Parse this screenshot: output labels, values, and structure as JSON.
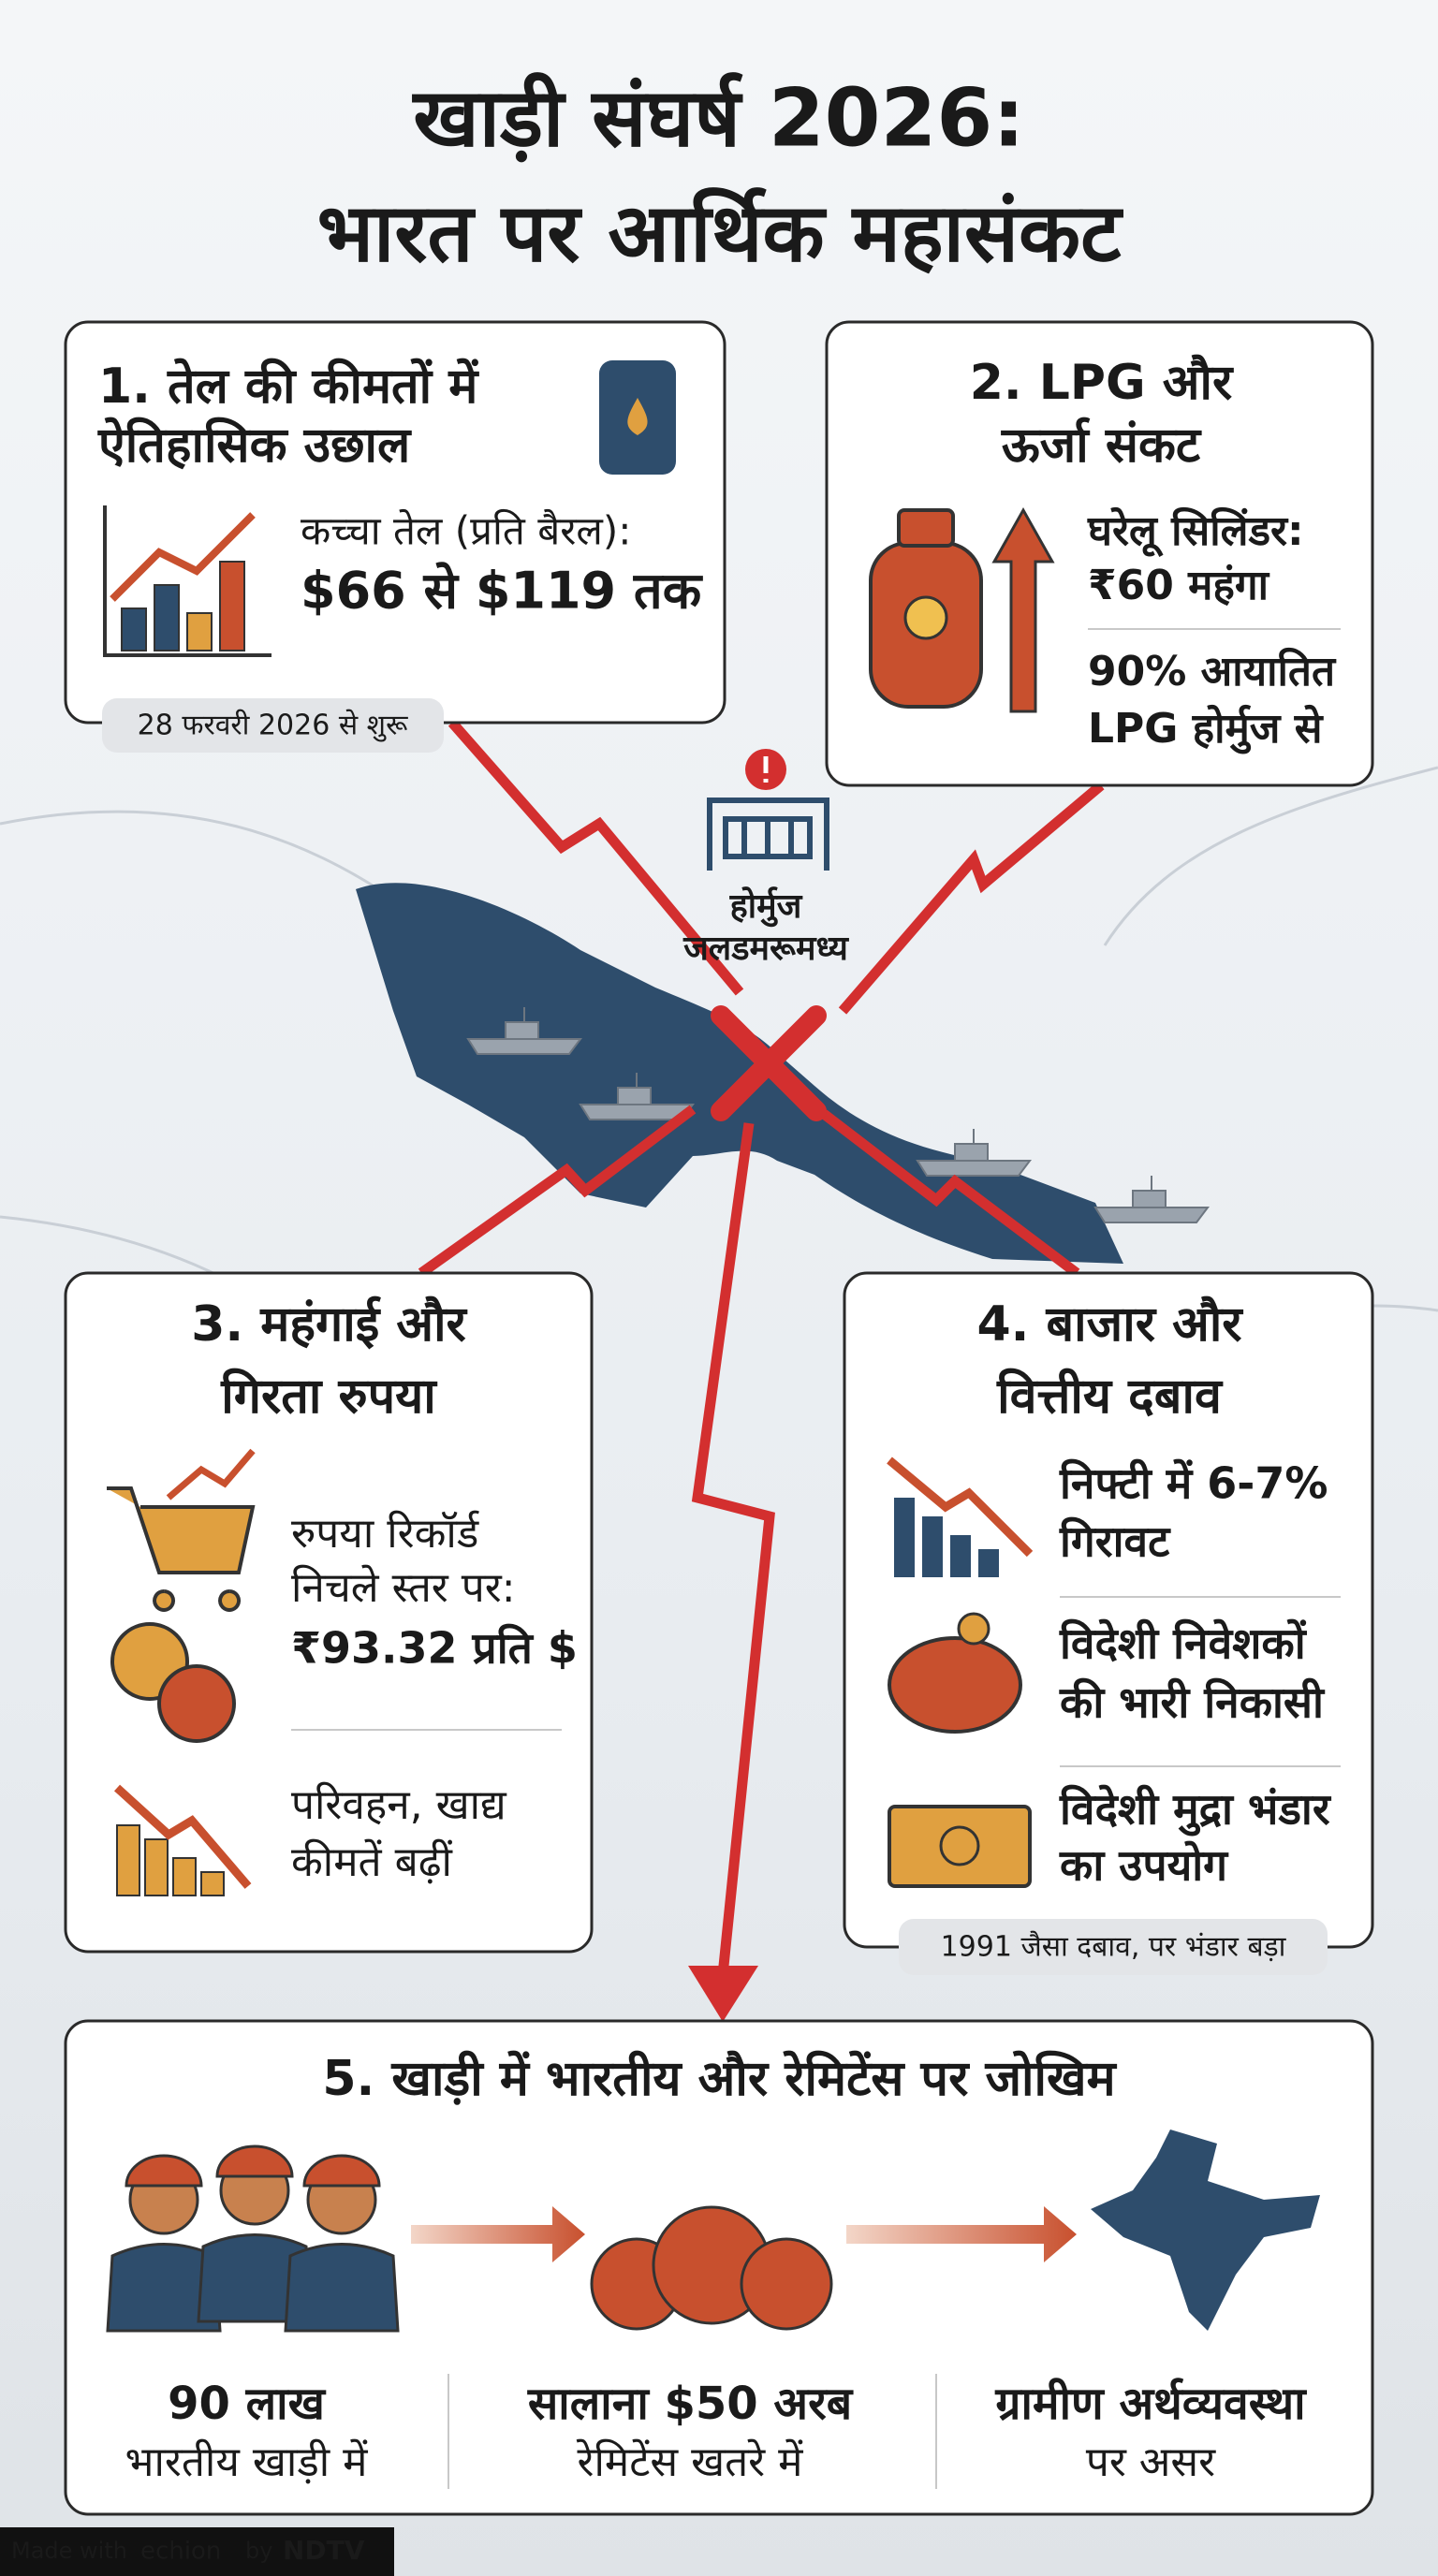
{
  "header": {
    "title": [
      "खाड़ी संघर्ष 2026:",
      "भारत पर आर्थिक महासंकट"
    ]
  },
  "map_label": [
    "होर्मुज",
    "जलडमरूमध्य"
  ],
  "cards": [
    {
      "heading": [
        "1. तेल की कीमतों में",
        "ऐतिहासिक उछाल"
      ],
      "items": [
        {
          "text": [
            "कच्चा तेल (प्रति बैरल):",
            "$66 से $119 तक"
          ]
        }
      ],
      "note": "28 फरवरी 2026 से शुरू"
    },
    {
      "heading": [
        "2. LPG और",
        "ऊर्जा संकट"
      ],
      "items": [
        {
          "text": [
            "घरेलू सिलिंडर:",
            "₹60 महंगा"
          ]
        },
        {
          "text": [
            "90% आयातित",
            "LPG होर्मुज से"
          ]
        }
      ]
    },
    {
      "heading": [
        "3. महंगाई और",
        "गिरता रुपया"
      ],
      "items": [
        {
          "text": [
            "रुपया रिकॉर्ड",
            "निचले स्तर पर:",
            "₹93.32 प्रति $"
          ]
        },
        {
          "text": [
            "परिवहन, खाद्य",
            "कीमतें बढ़ीं"
          ]
        }
      ]
    },
    {
      "heading": [
        "4. बाजार और",
        "वित्तीय दबाव"
      ],
      "items": [
        {
          "text": [
            "निफ्टी में 6-7%",
            "गिरावट"
          ]
        },
        {
          "text": [
            "विदेशी निवेशकों",
            "की भारी निकासी"
          ]
        },
        {
          "text": [
            "विदेशी मुद्रा भंडार",
            "का उपयोग"
          ]
        }
      ],
      "note": "1991 जैसा दबाव, पर भंडार बड़ा"
    },
    {
      "heading": [
        "5. खाड़ी में भारतीय और रेमिटेंस पर जोखिम"
      ],
      "items": [
        {
          "text": [
            "90 लाख",
            "भारतीय खाड़ी में"
          ]
        },
        {
          "text": [
            "सालाना $50 अरब",
            "रेमिटेंस खतरे में"
          ]
        },
        {
          "text": [
            "ग्रामीण अर्थव्यवस्था",
            "पर असर"
          ]
        }
      ]
    }
  ],
  "footer": {
    "made_with": "Made with",
    "brand": "echion",
    "by": "by",
    "partner": "NDTV"
  }
}
